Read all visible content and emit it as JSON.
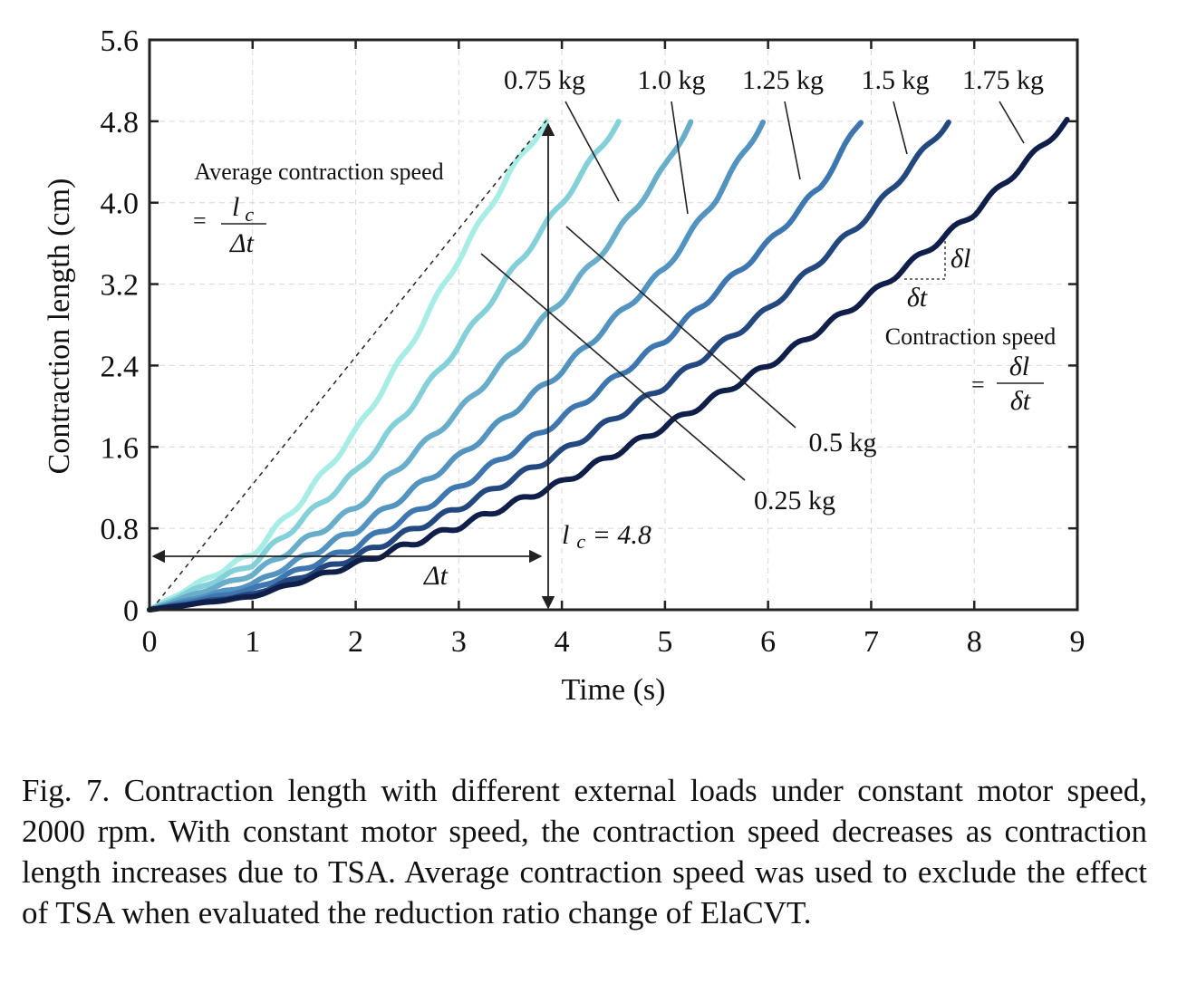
{
  "chart_data": {
    "type": "line",
    "xlabel": "Time (s)",
    "ylabel": "Contraction length (cm)",
    "xlim": [
      0,
      9
    ],
    "ylim": [
      0,
      5.6
    ],
    "xticks": [
      "0",
      "1",
      "2",
      "3",
      "4",
      "5",
      "6",
      "7",
      "8",
      "9"
    ],
    "yticks": [
      "0",
      "0.8",
      "1.6",
      "2.4",
      "3.2",
      "4.0",
      "4.8",
      "5.6"
    ],
    "grid": true,
    "series": [
      {
        "name": "0.25 kg",
        "color": "#a8ece6",
        "x": [
          0,
          1,
          1.5,
          2,
          2.5,
          3,
          3.5,
          3.85
        ],
        "y": [
          0,
          0.55,
          1.1,
          1.75,
          2.55,
          3.45,
          4.3,
          4.8
        ]
      },
      {
        "name": "0.5 kg",
        "color": "#84d0d8",
        "x": [
          0,
          1,
          2,
          2.5,
          3,
          3.5,
          4,
          4.55
        ],
        "y": [
          0,
          0.45,
          1.35,
          1.95,
          2.6,
          3.3,
          4.0,
          4.8
        ]
      },
      {
        "name": "0.75 kg",
        "color": "#68aecb",
        "x": [
          0,
          1,
          2,
          3,
          3.5,
          4,
          4.5,
          5.0,
          5.25
        ],
        "y": [
          0,
          0.35,
          1.0,
          1.95,
          2.5,
          3.05,
          3.65,
          4.35,
          4.8
        ]
      },
      {
        "name": "1.0 kg",
        "color": "#5293c0",
        "x": [
          0,
          1,
          2,
          3,
          4,
          5,
          5.5,
          5.95
        ],
        "y": [
          0,
          0.25,
          0.78,
          1.5,
          2.35,
          3.35,
          4.05,
          4.8
        ]
      },
      {
        "name": "1.25 kg",
        "color": "#3e77b0",
        "x": [
          0,
          1,
          2,
          3,
          4,
          5,
          6,
          6.5,
          6.9
        ],
        "y": [
          0,
          0.2,
          0.62,
          1.2,
          1.88,
          2.65,
          3.6,
          4.15,
          4.8
        ]
      },
      {
        "name": "1.5 kg",
        "color": "#23477f",
        "x": [
          0,
          1,
          2,
          3,
          4,
          5,
          6,
          7,
          7.75
        ],
        "y": [
          0,
          0.15,
          0.52,
          1.0,
          1.55,
          2.2,
          2.95,
          3.9,
          4.8
        ]
      },
      {
        "name": "1.75 kg",
        "color": "#0f1f4a",
        "x": [
          0,
          1,
          2,
          3,
          4,
          5,
          6,
          7,
          8,
          8.9
        ],
        "y": [
          0,
          0.13,
          0.45,
          0.82,
          1.25,
          1.8,
          2.4,
          3.1,
          3.9,
          4.8
        ]
      }
    ],
    "annotations": {
      "avg_speed_title": "Average contraction speed",
      "avg_speed_eq": "=",
      "lc_num": "l",
      "lc_sub": "c",
      "delta_t_den": "Δt",
      "delta_t_label": "Δt",
      "lc_value_l": "l",
      "lc_value_sub": "c",
      "lc_value_rest": " = 4.8",
      "dl_label": "δl",
      "dt_label": "δt",
      "speed_title": "Contraction speed",
      "speed_eq": "=",
      "speed_num": "δl",
      "speed_den": "δt"
    }
  },
  "caption": "Fig. 7.  Contraction length with different external loads under constant motor speed, 2000 rpm. With constant motor speed, the contraction speed decreases as contraction length increases due to TSA. Average contraction speed was used to exclude the effect of TSA when evaluated the reduction ratio change of ElaCVT."
}
